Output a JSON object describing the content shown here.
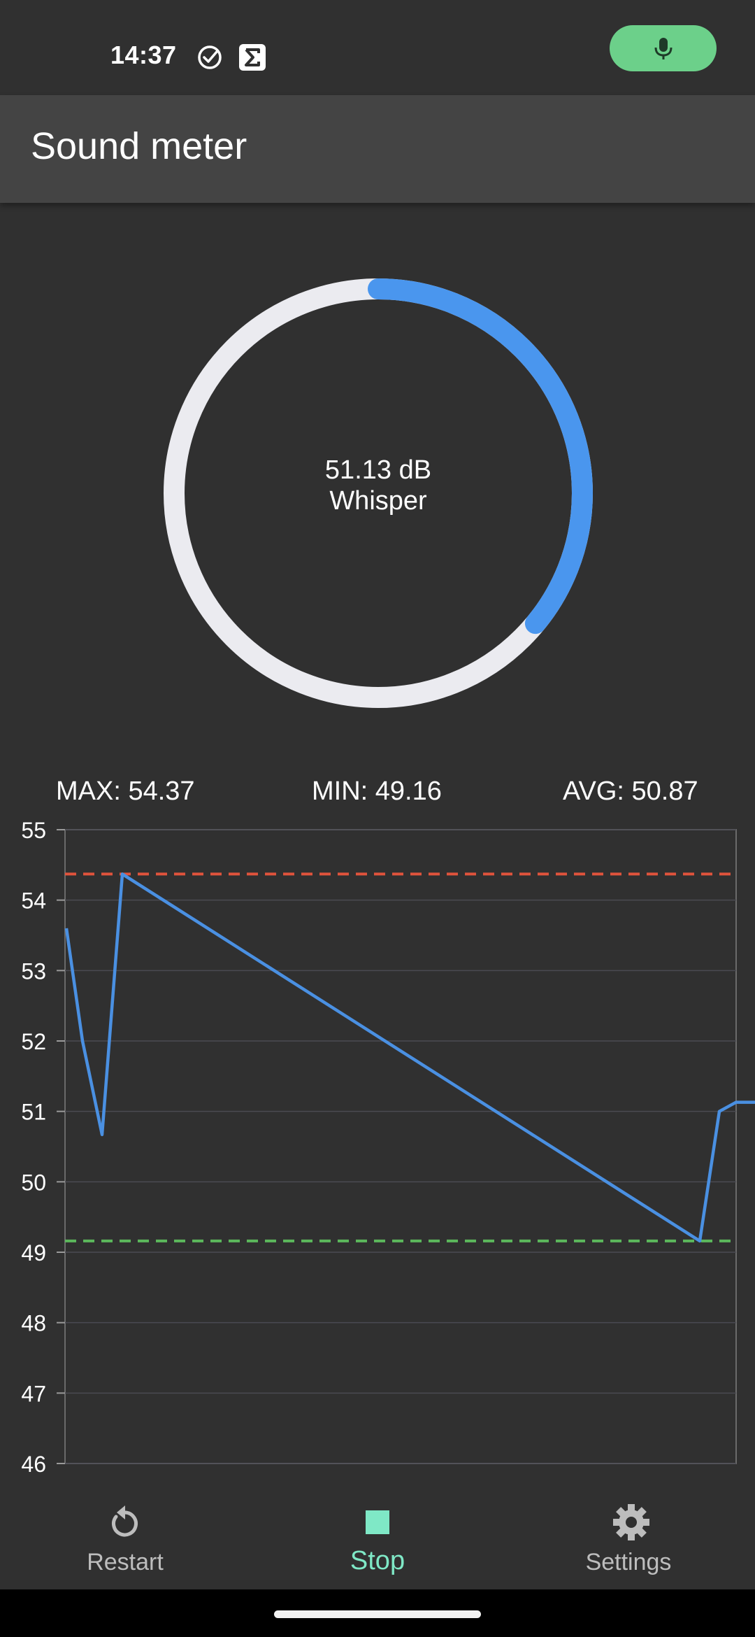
{
  "status_bar": {
    "time": "14:37",
    "icons": [
      "check-circle-icon",
      "sigma-icon"
    ],
    "mic_indicator": "microphone-icon"
  },
  "app_bar": {
    "title": "Sound meter"
  },
  "gauge": {
    "value_text": "51.13 dB",
    "level_label": "Whisper",
    "fraction": 0.36,
    "track_color": "#ebebf0",
    "progress_color": "#4a96ee"
  },
  "stats": {
    "max": "MAX: 54.37",
    "min": "MIN: 49.16",
    "avg": "AVG: 50.87"
  },
  "chart_data": {
    "type": "line",
    "ylim": [
      46,
      55
    ],
    "yticks": [
      "46",
      "47",
      "48",
      "49",
      "50",
      "51",
      "52",
      "53",
      "54",
      "55"
    ],
    "grid": true,
    "series": [
      {
        "color": "#4a90e2",
        "x": [
          0,
          1,
          2,
          3,
          4,
          5,
          6,
          7
        ],
        "values": [
          53.6,
          52.0,
          50.67,
          54.37,
          49.16,
          51.0,
          51.13,
          51.13
        ]
      }
    ],
    "max_line": {
      "value": 54.37,
      "color": "#e0533c"
    },
    "min_line": {
      "value": 49.16,
      "color": "#5cb85c"
    }
  },
  "bottom_nav": {
    "items": [
      {
        "label": "Restart",
        "icon": "restart-icon",
        "active": false
      },
      {
        "label": "Stop",
        "icon": "stop-icon",
        "active": true
      },
      {
        "label": "Settings",
        "icon": "settings-gear-icon",
        "active": false
      }
    ]
  }
}
